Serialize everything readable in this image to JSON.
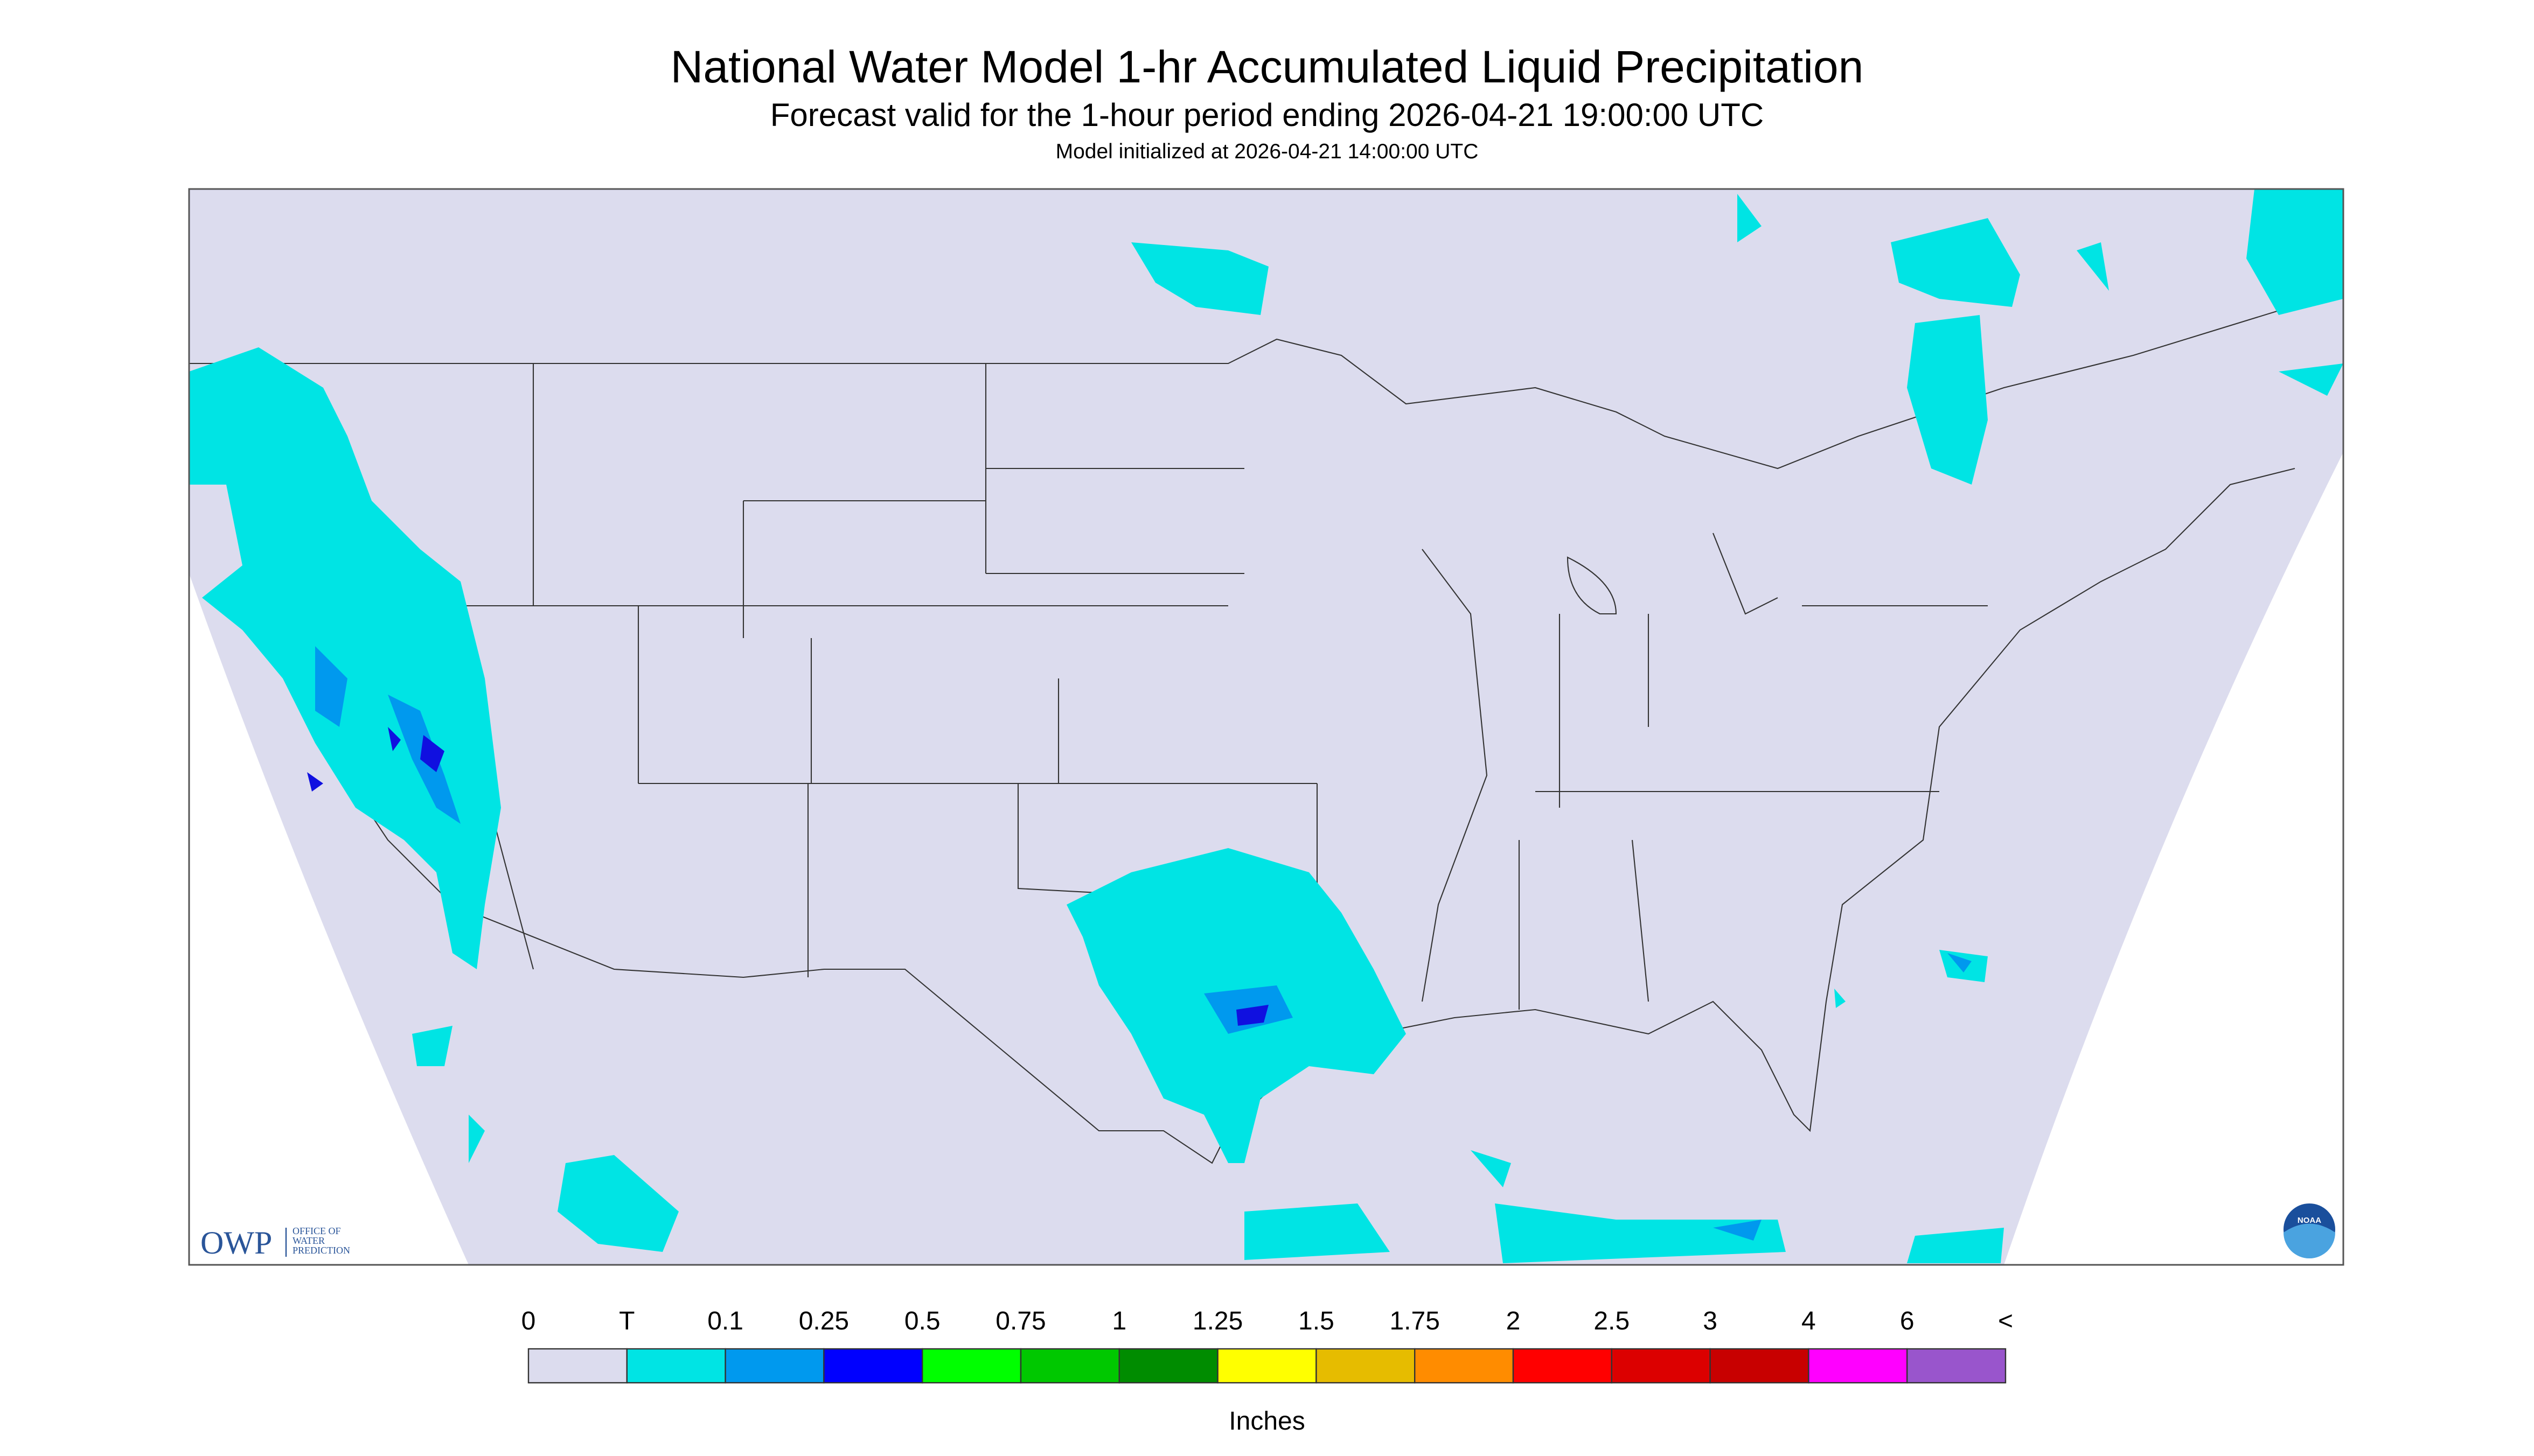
{
  "header": {
    "title": "National Water Model 1-hr Accumulated Liquid Precipitation",
    "subtitle": "Forecast valid for the 1-hour period ending 2026-04-21 19:00:00 UTC",
    "init": "Model initialized at 2026-04-21 14:00:00 UTC"
  },
  "logo": {
    "abbr": "OWP",
    "line1": "OFFICE OF",
    "line2": "WATER",
    "line3": "PREDICTION",
    "noaa": "NOAA"
  },
  "legend": {
    "labels": [
      "0",
      "T",
      "0.1",
      "0.25",
      "0.5",
      "0.75",
      "1",
      "1.25",
      "1.5",
      "1.75",
      "2",
      "2.5",
      "3",
      "4",
      "6",
      "<"
    ],
    "colors": [
      "#dcdcee",
      "#00e4e4",
      "#0099ee",
      "#0000ff",
      "#00ff00",
      "#00c800",
      "#008c00",
      "#ffff00",
      "#e6bc00",
      "#ff8c00",
      "#ff0000",
      "#dc0000",
      "#c80000",
      "#ff00ff",
      "#9955cc"
    ],
    "unit": "Inches"
  }
}
